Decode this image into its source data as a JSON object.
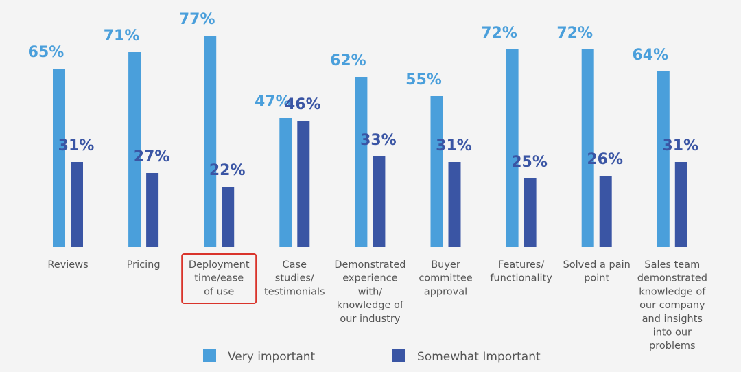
{
  "chart_data": {
    "type": "bar",
    "categories": [
      [
        "Reviews"
      ],
      [
        "Pricing"
      ],
      [
        "Deployment",
        "time/ease",
        "of use"
      ],
      [
        "Case",
        "studies/",
        "testimonials"
      ],
      [
        "Demonstrated",
        "experience",
        "with/",
        "knowledge of",
        "our industry"
      ],
      [
        "Buyer",
        "committee",
        "approval"
      ],
      [
        "Features/",
        "functionality"
      ],
      [
        "Solved a pain",
        "point"
      ],
      [
        "Sales team",
        "demonstrated",
        "knowledge of",
        "our company",
        "and insights",
        "into our",
        "problems"
      ]
    ],
    "series": [
      {
        "name": "Very important",
        "color": "#4a9fdb",
        "values": [
          65,
          71,
          77,
          47,
          62,
          55,
          72,
          72,
          64
        ],
        "labels": [
          "65%",
          "71%",
          "77%",
          "47%",
          "62%",
          "55%",
          "72%",
          "72%",
          "64%"
        ]
      },
      {
        "name": "Somewhat Important",
        "color": "#3a55a4",
        "values": [
          31,
          27,
          22,
          46,
          33,
          31,
          25,
          26,
          31
        ],
        "labels": [
          "31%",
          "27%",
          "22%",
          "46%",
          "33%",
          "31%",
          "25%",
          "26%",
          "31%"
        ]
      }
    ],
    "highlighted_category_index": 2,
    "highlight_color": "#d9342b",
    "label_color": "#555555",
    "legend_position": "bottom"
  }
}
